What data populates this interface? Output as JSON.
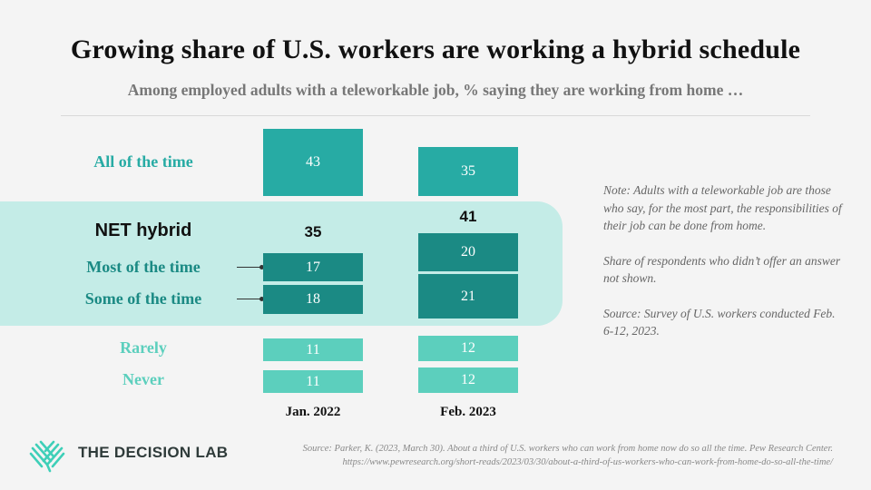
{
  "header": {
    "title": "Growing share of U.S. workers are working a hybrid schedule",
    "subtitle": "Among employed adults with a teleworkable job, % saying they are working from home …"
  },
  "chart_data": {
    "type": "bar",
    "layout": "stacked-blocks",
    "categories": [
      "Jan. 2022",
      "Feb. 2023"
    ],
    "series": [
      {
        "name": "All of the time",
        "values": [
          43,
          35
        ],
        "color": "#27aba4"
      },
      {
        "name": "Most of the time",
        "values": [
          17,
          20
        ],
        "color": "#1b8a84"
      },
      {
        "name": "Some of the time",
        "values": [
          18,
          21
        ],
        "color": "#1b8a84"
      },
      {
        "name": "Rarely",
        "values": [
          11,
          12
        ],
        "color": "#5ccfbd"
      },
      {
        "name": "Never",
        "values": [
          11,
          12
        ],
        "color": "#5ccfbd"
      }
    ],
    "net": {
      "name": "NET hybrid",
      "values": [
        35,
        41
      ]
    },
    "net_band_color": "#c4ece7"
  },
  "labels": {
    "all": "All of the time",
    "net": "NET hybrid",
    "most": "Most of the time",
    "some": "Some of the time",
    "rarely": "Rarely",
    "never": "Never"
  },
  "note": {
    "p1": "Note: Adults with a teleworkable job are those who say, for the most part, the responsibilities of their job can be done from home.",
    "p2": "Share of respondents who didn’t offer an answer not shown.",
    "p3": "Source: Survey of U.S. workers conducted Feb. 6-12, 2023."
  },
  "footer": {
    "logo_text": "THE DECISION LAB",
    "logo_icon": "decision-lab-logo-icon",
    "source_line1": "Source: Parker, K. (2023, March 30). About a third of U.S. workers who can work from home now do so all the time. Pew Research Center.",
    "source_line2": "https://www.pewresearch.org/short-reads/2023/03/30/about-a-third-of-us-workers-who-can-work-from-home-do-so-all-the-time/"
  }
}
